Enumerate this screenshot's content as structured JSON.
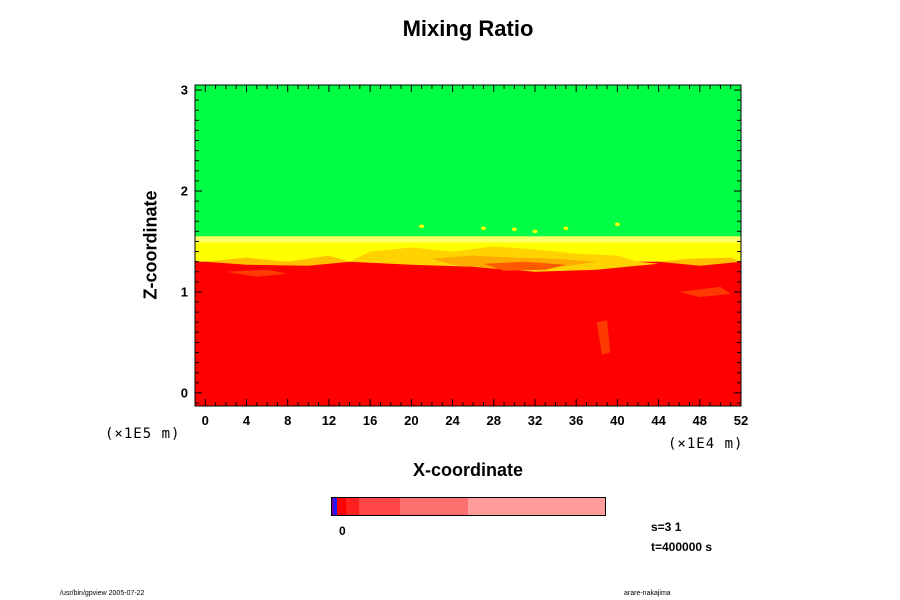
{
  "chart_data": {
    "type": "heatmap",
    "title": "Mixing Ratio",
    "xlabel": "X-coordinate",
    "ylabel": "Z-coordinate",
    "x_unit": "(×1E4 m)",
    "z_unit": "(×1E5 m)",
    "x_ticks": [
      "0",
      "4",
      "8",
      "12",
      "16",
      "20",
      "24",
      "28",
      "32",
      "36",
      "40",
      "44",
      "48",
      "52"
    ],
    "y_ticks": [
      "0",
      "1",
      "2",
      "3"
    ],
    "xlim": [
      -1,
      52
    ],
    "ylim": [
      -0.13,
      3.05
    ],
    "regions": [
      {
        "name": "upper",
        "z_range": [
          1.55,
          3.05
        ],
        "color": "#00ff44"
      },
      {
        "name": "transition",
        "z_range": [
          1.3,
          1.55
        ],
        "color": "#ffff00"
      },
      {
        "name": "lower",
        "z_range": [
          -0.13,
          1.3
        ],
        "color": "#ff0000"
      }
    ],
    "colorbar": {
      "segments": [
        {
          "color": "#6a00b8",
          "weight": 2
        },
        {
          "color": "#1a1aff",
          "weight": 3
        },
        {
          "color": "#ff0000",
          "weight": 8
        },
        {
          "color": "#ff2020",
          "weight": 13
        },
        {
          "color": "#ff4545",
          "weight": 39
        },
        {
          "color": "#ff7070",
          "weight": 65
        },
        {
          "color": "#ff9c9c",
          "weight": 131
        }
      ],
      "labels": [
        "0"
      ]
    },
    "info": {
      "s": "s=3 1",
      "t": "t=400000 s"
    }
  },
  "footer": {
    "left": "/usr/bin/gpview 2005-07-22",
    "right": "arare-nakajima"
  }
}
